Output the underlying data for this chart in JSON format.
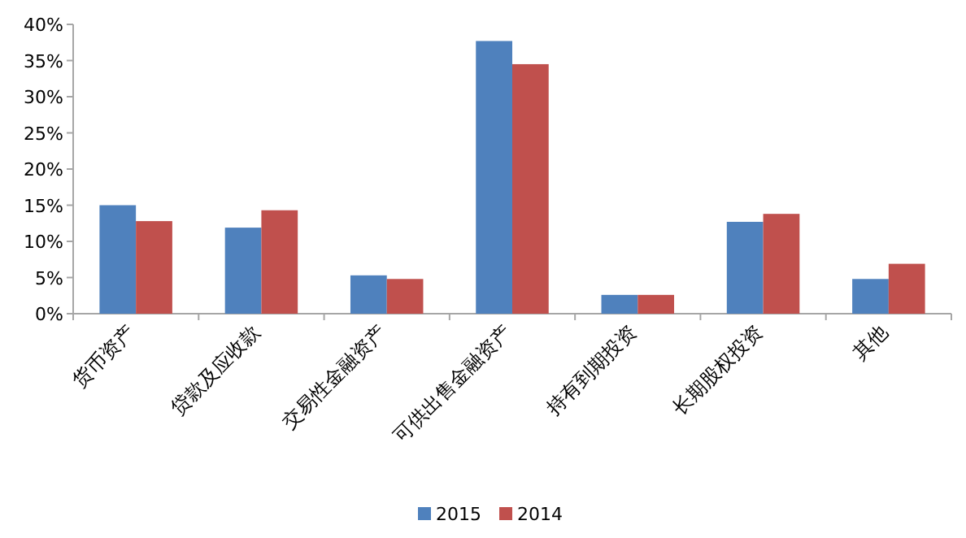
{
  "chart_data": {
    "type": "bar",
    "categories": [
      "货币资产",
      "贷款及应收款",
      "交易性金融资产",
      "可供出售金融资产",
      "持有到期投资",
      "长期股权投资",
      "其他"
    ],
    "series": [
      {
        "name": "2015",
        "color": "#4f81bd",
        "values": [
          15.0,
          11.9,
          5.3,
          37.7,
          2.6,
          12.7,
          4.8
        ]
      },
      {
        "name": "2014",
        "color": "#c0504d",
        "values": [
          12.8,
          14.3,
          4.8,
          34.5,
          2.6,
          13.8,
          6.9
        ]
      }
    ],
    "ylim": [
      0,
      40
    ],
    "yticks": [
      {
        "value": 0,
        "label": "0%"
      },
      {
        "value": 5,
        "label": "5%"
      },
      {
        "value": 10,
        "label": "10%"
      },
      {
        "value": 15,
        "label": "15%"
      },
      {
        "value": 20,
        "label": "20%"
      },
      {
        "value": 25,
        "label": "25%"
      },
      {
        "value": 30,
        "label": "30%"
      },
      {
        "value": 35,
        "label": "35%"
      },
      {
        "value": 40,
        "label": "40%"
      }
    ],
    "grid": false,
    "legend": "bottom"
  }
}
